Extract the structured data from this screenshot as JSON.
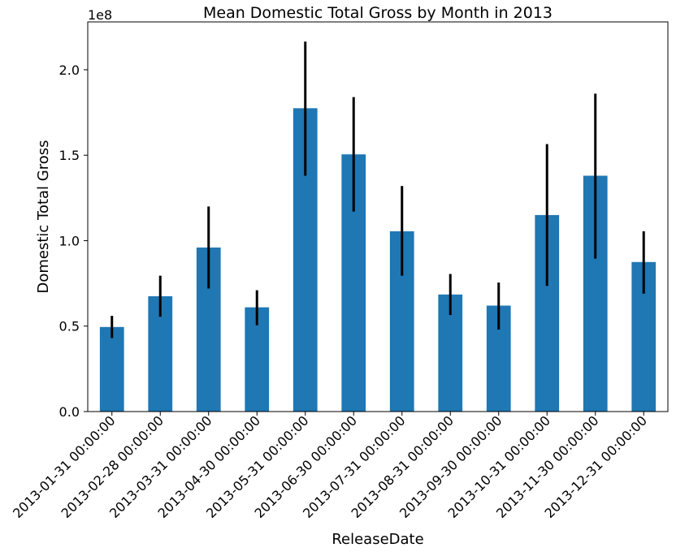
{
  "chart_data": {
    "type": "bar",
    "title": "Mean Domestic Total Gross by Month in 2013",
    "xlabel": "ReleaseDate",
    "ylabel": "Domestic Total Gross",
    "y_offset_label": "1e8",
    "categories": [
      "2013-01-31 00:00:00",
      "2013-02-28 00:00:00",
      "2013-03-31 00:00:00",
      "2013-04-30 00:00:00",
      "2013-05-31 00:00:00",
      "2013-06-30 00:00:00",
      "2013-07-31 00:00:00",
      "2013-08-31 00:00:00",
      "2013-09-30 00:00:00",
      "2013-10-31 00:00:00",
      "2013-11-30 00:00:00",
      "2013-12-31 00:00:00"
    ],
    "values": [
      49500000,
      67500000,
      96000000,
      61000000,
      177500000,
      150500000,
      105500000,
      68500000,
      62000000,
      115000000,
      138000000,
      87500000
    ],
    "error_low": [
      43000000,
      55500000,
      72000000,
      50500000,
      138000000,
      117000000,
      79500000,
      56500000,
      48000000,
      73500000,
      89500000,
      69000000
    ],
    "error_high": [
      56000000,
      79500000,
      120000000,
      71000000,
      216500000,
      184000000,
      132000000,
      80500000,
      75500000,
      156500000,
      186000000,
      105500000
    ],
    "ylim": [
      0,
      228000000
    ],
    "yticks": [
      0,
      50000000,
      100000000,
      150000000,
      200000000
    ],
    "ytick_labels": [
      "0.0",
      "0.5",
      "1.0",
      "1.5",
      "2.0"
    ],
    "bar_color": "#1f77b4",
    "error_color": "#000000",
    "grid": false,
    "legend": "none"
  }
}
